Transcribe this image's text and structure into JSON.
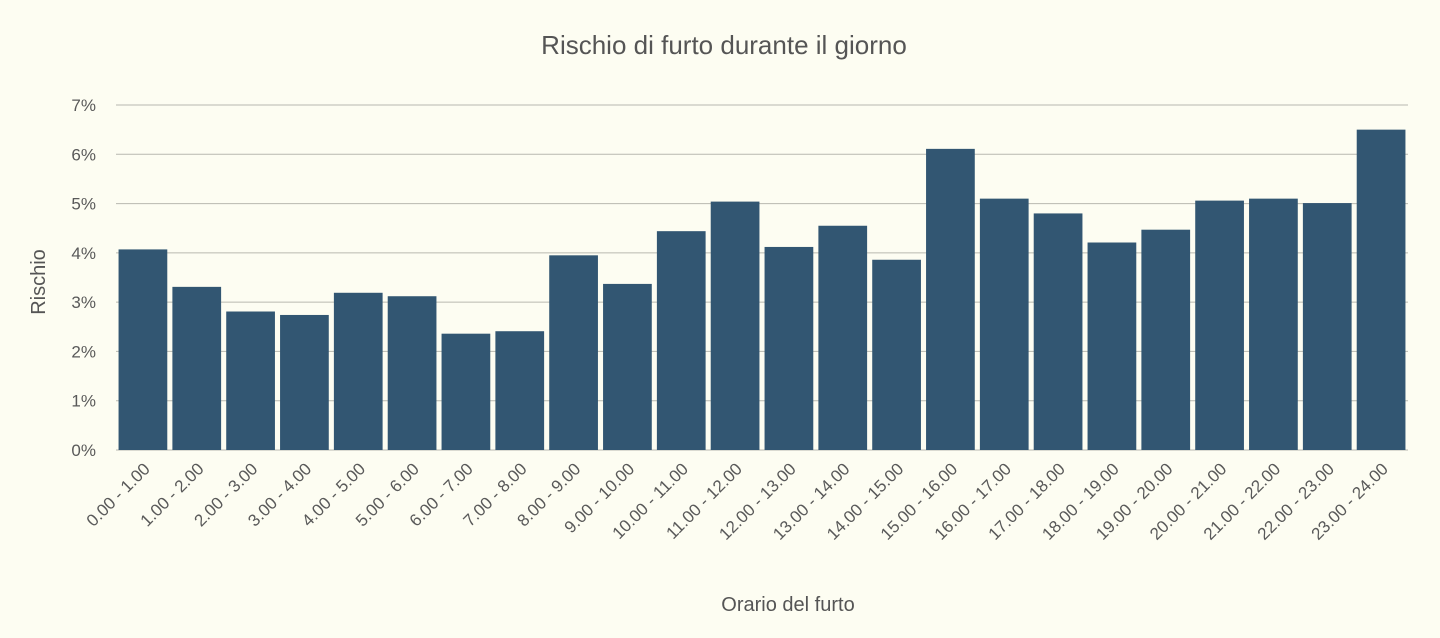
{
  "chart_data": {
    "type": "bar",
    "title": "Rischio di furto durante il giorno",
    "xlabel": "Orario del furto",
    "ylabel": "Rischio",
    "categories": [
      "0.00 - 1.00",
      "1.00 - 2.00",
      "2.00 - 3.00",
      "3.00 - 4.00",
      "4.00 - 5.00",
      "5.00 - 6.00",
      "6.00 - 7.00",
      "7.00 - 8.00",
      "8.00 - 9.00",
      "9.00 - 10.00",
      "10.00 - 11.00",
      "11.00 - 12.00",
      "12.00 - 13.00",
      "13.00 - 14.00",
      "14.00 - 15.00",
      "15.00 - 16.00",
      "16.00 - 17.00",
      "17.00 - 18.00",
      "18.00 - 19.00",
      "19.00 - 20.00",
      "20.00 - 21.00",
      "21.00 - 22.00",
      "22.00 - 23.00",
      "23.00 - 24.00"
    ],
    "values": [
      4.07,
      3.31,
      2.81,
      2.74,
      3.19,
      3.12,
      2.36,
      2.41,
      3.95,
      3.37,
      4.44,
      5.04,
      4.12,
      4.55,
      3.86,
      6.11,
      5.1,
      4.8,
      4.21,
      4.47,
      5.06,
      5.1,
      5.01,
      6.5
    ],
    "ylim": [
      0,
      7
    ],
    "yticks": [
      "0%",
      "1%",
      "2%",
      "3%",
      "4%",
      "5%",
      "6%",
      "7%"
    ],
    "grid": true,
    "legend": "none",
    "colors": {
      "bar": "#325672",
      "background": "#fdfdf2"
    }
  }
}
